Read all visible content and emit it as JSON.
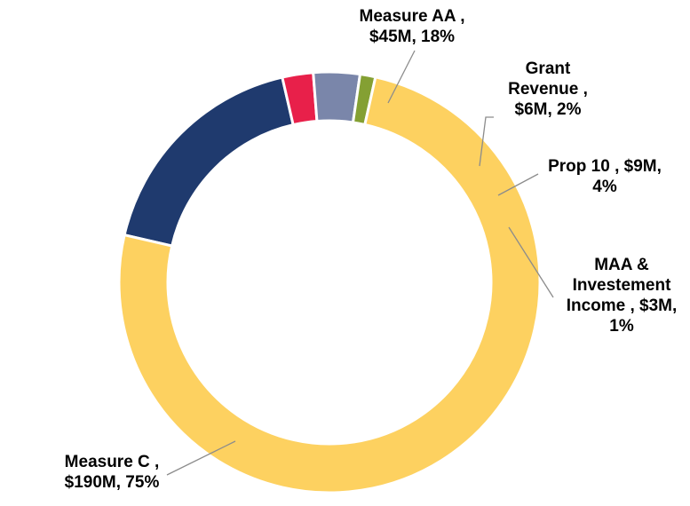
{
  "chart_data": {
    "type": "pie",
    "variant": "donut",
    "title": "",
    "legend": "none",
    "slices": [
      {
        "name": "Measure AA",
        "value": 45,
        "unit": "$M",
        "percent": 18,
        "color": "#1f3a6e",
        "label_lines": [
          "Measure AA ,",
          "$45M, 18%"
        ]
      },
      {
        "name": "Grant Revenue",
        "value": 6,
        "unit": "$M",
        "percent": 2,
        "color": "#e8204a",
        "label_lines": [
          "Grant",
          "Revenue ,",
          "$6M, 2%"
        ]
      },
      {
        "name": "Prop 10",
        "value": 9,
        "unit": "$M",
        "percent": 4,
        "color": "#7a86aa",
        "label_lines": [
          "Prop 10 , $9M,",
          "4%"
        ]
      },
      {
        "name": "MAA & Investement Income",
        "value": 3,
        "unit": "$M",
        "percent": 1,
        "color": "#84a033",
        "label_lines": [
          "MAA &",
          "Investement",
          "Income , $3M,",
          "1%"
        ]
      },
      {
        "name": "Measure C",
        "value": 190,
        "unit": "$M",
        "percent": 75,
        "color": "#fdd160",
        "label_lines": [
          "Measure C ,",
          "$190M, 75%"
        ]
      }
    ]
  }
}
